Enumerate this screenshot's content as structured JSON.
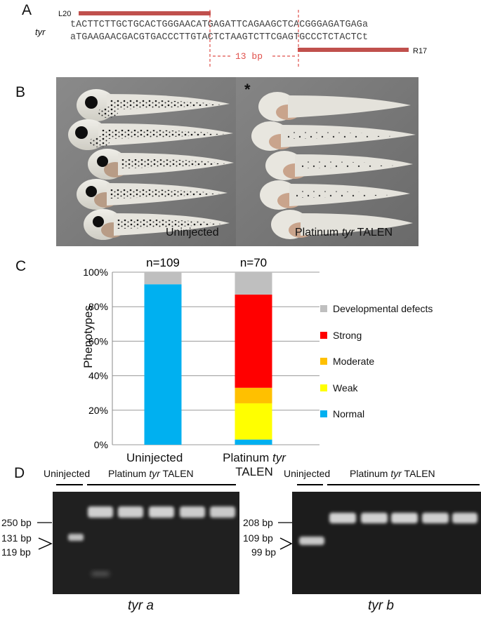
{
  "panelA": {
    "letter": "A",
    "gene_label": "tyr",
    "left_arm_label": "L20",
    "right_arm_label": "R17",
    "top_strand": "tACTTCTTGCTGCACTGGGAACATGAGATTCAGAAGCTCACGGGAGATGAGa",
    "bottom_strand": "aTGAAGAACGACGTGACCCTTGTACTCTAAGTCTTCGAGTGCCCTCTACTCt",
    "spacer_label": "13 bp",
    "arm_color": "#c0504d",
    "spacer_color": "#e0504b"
  },
  "panelB": {
    "letter": "B",
    "left_caption": "Uninjected",
    "right_caption_pre": "Platinum ",
    "right_caption_gene": "tyr",
    "right_caption_post": " TALEN",
    "asterisk": "*"
  },
  "panelC": {
    "letter": "C",
    "ylabel": "Phenotypes",
    "legend": [
      {
        "label": "Developmental defects",
        "color": "#bfbfbf"
      },
      {
        "label": "Strong",
        "color": "#ff0000"
      },
      {
        "label": "Moderate",
        "color": "#ffc000"
      },
      {
        "label": "Weak",
        "color": "#ffff00"
      },
      {
        "label": "Normal",
        "color": "#00b0f0"
      }
    ],
    "chart_data": {
      "type": "bar",
      "stacked": true,
      "xlabel": "",
      "ylabel": "Phenotypes",
      "categories": [
        "Uninjected",
        "Platinum tyr TALEN"
      ],
      "annotations": [
        "n=109",
        "n=70"
      ],
      "yticks": [
        "0%",
        "20%",
        "40%",
        "60%",
        "80%",
        "100%"
      ],
      "ylim": [
        0,
        100
      ],
      "series": [
        {
          "name": "Normal",
          "color": "#00b0f0",
          "values": [
            93,
            3
          ]
        },
        {
          "name": "Weak",
          "color": "#ffff00",
          "values": [
            0,
            21
          ]
        },
        {
          "name": "Moderate",
          "color": "#ffc000",
          "values": [
            0,
            9
          ]
        },
        {
          "name": "Strong",
          "color": "#ff0000",
          "values": [
            0,
            54
          ]
        },
        {
          "name": "Developmental defects",
          "color": "#bfbfbf",
          "values": [
            7,
            13
          ]
        }
      ]
    },
    "cat_label_1": "Uninjected",
    "cat_label_2_pre": "Platinum ",
    "cat_label_2_gene": "tyr",
    "cat_label_2_post": "TALEN"
  },
  "panelD": {
    "letter": "D",
    "left_gel": {
      "uninjected": "Uninjected",
      "treated_pre": "Platinum ",
      "treated_gene": "tyr",
      "treated_post": " TALEN",
      "marker_top": "250 bp",
      "marker_mid": "131 bp",
      "marker_bot": "119 bp",
      "caption": "tyr a"
    },
    "right_gel": {
      "uninjected": "Uninjected",
      "treated_pre": "Platinum ",
      "treated_gene": "tyr",
      "treated_post": " TALEN",
      "marker_top": "208 bp",
      "marker_mid": "109 bp",
      "marker_bot": "99 bp",
      "caption": "tyr b"
    }
  }
}
